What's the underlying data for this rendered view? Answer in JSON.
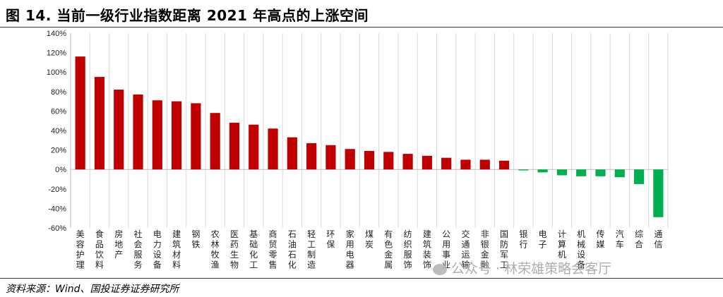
{
  "title": "图 14. 当前一级行业指数距离 2021 年高点的上涨空间",
  "source": "资料来源：Wind、国投证券证券研究所",
  "watermark": "公众号 · 林荣雄策略会客厅",
  "colors": {
    "positive": "#c00000",
    "negative": "#00b050",
    "grid": "#d9d9d9",
    "axis": "#bfbfbf"
  },
  "chart_data": {
    "type": "bar",
    "title": "",
    "xlabel": "",
    "ylabel": "",
    "ylim": [
      -60,
      140
    ],
    "yticks": [
      -60,
      -40,
      -20,
      0,
      20,
      40,
      60,
      80,
      100,
      120,
      140
    ],
    "ytick_labels": [
      "-60%",
      "-40%",
      "-20%",
      "0%",
      "20%",
      "40%",
      "60%",
      "80%",
      "100%",
      "120%",
      "140%"
    ],
    "grid": "vertical",
    "categories": [
      "美容护理",
      "食品饮料",
      "房地产",
      "社会服务",
      "电力设备",
      "建筑材料",
      "钢铁",
      "农林牧渔",
      "医药生物",
      "基础化工",
      "商贸零售",
      "石油石化",
      "轻工制造",
      "环保",
      "家用电器",
      "煤炭",
      "有色金属",
      "纺织服饰",
      "建筑装饰",
      "公用事业",
      "交通运输",
      "非银金融",
      "国防军工",
      "银行",
      "电子",
      "计算机",
      "机械设备",
      "传媒",
      "汽车",
      "综合",
      "通信"
    ],
    "values": [
      116,
      95,
      82,
      77,
      71,
      70,
      68,
      58,
      48,
      46,
      42,
      33,
      27,
      25,
      21,
      19,
      18,
      16,
      14,
      12,
      10,
      10,
      9,
      -1,
      -3,
      -6,
      -7,
      -7,
      -8,
      -15,
      -49
    ]
  }
}
